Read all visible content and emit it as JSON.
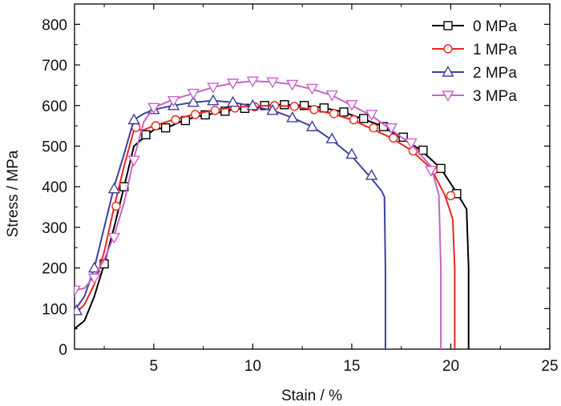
{
  "chart_data": {
    "type": "line",
    "title": "",
    "xlabel": "Stain / %",
    "ylabel": "Stress / MPa",
    "xlim": [
      1,
      25
    ],
    "ylim": [
      0,
      850
    ],
    "xticks": [
      5,
      10,
      15,
      20,
      25
    ],
    "yticks": [
      0,
      100,
      200,
      300,
      400,
      500,
      600,
      700,
      800
    ],
    "xtick_labels": [
      "5",
      "10",
      "15",
      "20",
      "25"
    ],
    "ytick_labels": [
      "0",
      "100",
      "200",
      "300",
      "400",
      "500",
      "600",
      "700",
      "800"
    ],
    "grid": false,
    "legend_position": "top-right",
    "series": [
      {
        "name": "0 MPa",
        "color": "#000000",
        "marker": "square",
        "x": [
          1.0,
          1.5,
          2.0,
          2.5,
          3.0,
          3.5,
          4.0,
          4.6,
          5.0,
          5.8,
          6.5,
          7.2,
          8.0,
          8.8,
          9.5,
          10.5,
          11.5,
          12.5,
          13.5,
          14.5,
          15.5,
          16.5,
          17.5,
          18.5,
          19.5,
          20.3,
          20.8,
          20.9,
          20.9
        ],
        "y": [
          50,
          70,
          130,
          210,
          300,
          400,
          500,
          525,
          540,
          548,
          563,
          573,
          580,
          588,
          593,
          600,
          602,
          600,
          595,
          585,
          568,
          550,
          520,
          490,
          445,
          385,
          345,
          200,
          0
        ],
        "marker_x": [
          2.5,
          3.5,
          4.6,
          5.6,
          6.6,
          7.6,
          8.6,
          9.6,
          10.6,
          11.6,
          12.6,
          13.6,
          14.6,
          15.6,
          16.6,
          17.6,
          18.6,
          19.5,
          20.3
        ],
        "marker_y": [
          210,
          400,
          528,
          545,
          563,
          577,
          586,
          593,
          600,
          602,
          600,
          594,
          584,
          568,
          548,
          522,
          490,
          445,
          383
        ]
      },
      {
        "name": "1 MPa",
        "color": "#e8281e",
        "marker": "circle",
        "x": [
          1.0,
          1.5,
          2.0,
          2.5,
          3.0,
          3.5,
          4.0,
          4.5,
          5.0,
          6.0,
          7.0,
          8.0,
          9.0,
          10.0,
          11.0,
          12.0,
          13.0,
          14.0,
          15.0,
          16.0,
          17.0,
          18.0,
          19.0,
          19.7,
          20.1,
          20.2,
          20.2
        ],
        "y": [
          85,
          110,
          160,
          240,
          350,
          450,
          540,
          540,
          550,
          565,
          578,
          588,
          595,
          598,
          600,
          598,
          590,
          580,
          565,
          543,
          520,
          490,
          445,
          380,
          320,
          200,
          0
        ],
        "marker_x": [
          3.1,
          4.1,
          5.1,
          6.1,
          7.1,
          8.1,
          9.1,
          10.1,
          11.1,
          12.1,
          13.1,
          14.1,
          15.1,
          16.1,
          17.1,
          18.1,
          19.1,
          20.0
        ],
        "marker_y": [
          352,
          546,
          550,
          565,
          578,
          588,
          594,
          597,
          600,
          598,
          590,
          580,
          565,
          545,
          520,
          488,
          440,
          378
        ]
      },
      {
        "name": "2 MPa",
        "color": "#3f3f9f",
        "marker": "triangle-up",
        "x": [
          1.0,
          1.5,
          2.0,
          2.5,
          3.0,
          3.5,
          4.0,
          4.5,
          5.0,
          6.0,
          7.0,
          8.0,
          9.0,
          10.0,
          11.0,
          12.0,
          13.0,
          14.0,
          15.0,
          16.0,
          16.5,
          16.65,
          16.7,
          16.7
        ],
        "y": [
          95,
          130,
          200,
          300,
          400,
          480,
          565,
          580,
          590,
          600,
          608,
          612,
          608,
          598,
          588,
          570,
          548,
          515,
          475,
          420,
          390,
          375,
          200,
          0
        ],
        "marker_x": [
          1.1,
          2.0,
          3.0,
          4.0,
          5.0,
          6.0,
          7.0,
          8.0,
          9.0,
          10.0,
          11.0,
          12.0,
          13.0,
          14.0,
          15.0,
          16.0
        ],
        "marker_y": [
          95,
          200,
          395,
          565,
          590,
          600,
          608,
          612,
          608,
          600,
          588,
          570,
          548,
          518,
          480,
          428
        ]
      },
      {
        "name": "3 MPa",
        "color": "#c864c8",
        "marker": "triangle-down",
        "x": [
          1.0,
          1.5,
          2.0,
          2.5,
          3.0,
          3.5,
          4.0,
          4.5,
          5.0,
          6.0,
          7.0,
          8.0,
          9.0,
          10.0,
          11.0,
          12.0,
          13.0,
          14.0,
          15.0,
          16.0,
          17.0,
          18.0,
          19.0,
          19.4,
          19.5,
          19.5
        ],
        "y": [
          145,
          150,
          180,
          220,
          280,
          360,
          470,
          560,
          595,
          615,
          630,
          645,
          655,
          660,
          658,
          652,
          640,
          625,
          600,
          575,
          540,
          505,
          450,
          380,
          200,
          0
        ],
        "marker_x": [
          1.0,
          2.0,
          3.0,
          4.0,
          5.0,
          6.0,
          7.0,
          8.0,
          9.0,
          10.0,
          11.0,
          12.0,
          13.0,
          14.0,
          15.0,
          16.0,
          17.0,
          18.0,
          19.0
        ],
        "marker_y": [
          145,
          175,
          275,
          465,
          595,
          612,
          630,
          645,
          655,
          660,
          658,
          652,
          642,
          626,
          602,
          578,
          545,
          508,
          440
        ]
      }
    ]
  }
}
